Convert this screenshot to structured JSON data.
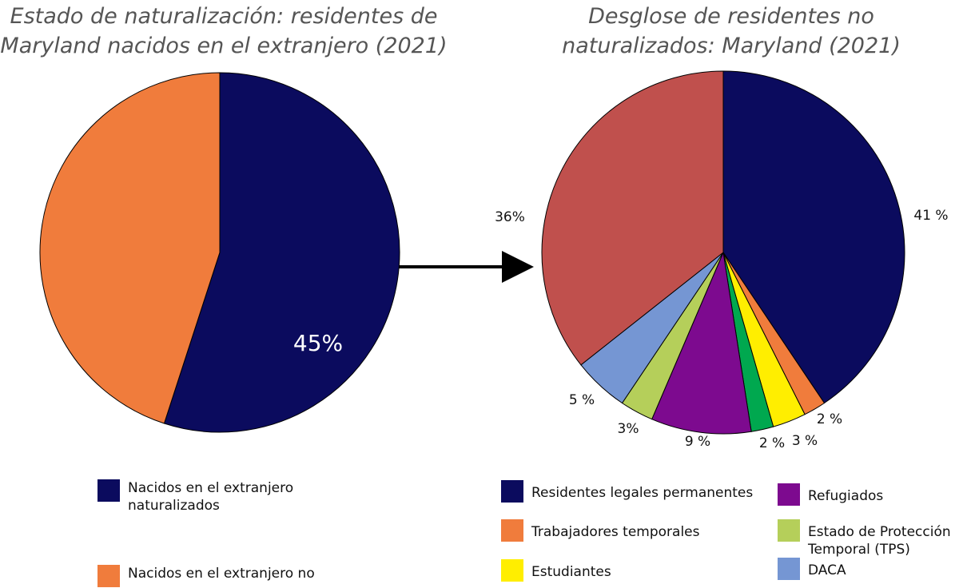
{
  "chart_data": [
    {
      "type": "pie",
      "title": "Estado de naturalización: residentes de Maryland nacidos en el extranjero (2021)",
      "categories": [
        "Nacidos en el extranjero naturalizados",
        "Nacidos en el extranjero no"
      ],
      "values": [
        55,
        45
      ],
      "value_labels": [
        "55%",
        "45%"
      ],
      "colors": [
        "#0b0b5e",
        "#f07c3c"
      ]
    },
    {
      "type": "pie",
      "title": "Desglose de residentes no naturalizados: Maryland (2021)",
      "categories": [
        "Residentes legales permanentes",
        "Trabajadores temporales",
        "Estudiantes",
        null,
        "Refugiados",
        "Estado de Protección Temporal (TPS)",
        "DACA",
        null
      ],
      "values": [
        41,
        2,
        3,
        2,
        9,
        3,
        5,
        36
      ],
      "value_labels": [
        "41 %",
        "2 %",
        "3 %",
        "2 %",
        "9 %",
        "3%",
        "5 %",
        "36%"
      ],
      "colors": [
        "#0b0b5e",
        "#f07c3c",
        "#ffee00",
        "#00a84f",
        "#7d0a8f",
        "#b5cf5a",
        "#7596d3",
        "#c0504d"
      ]
    }
  ]
}
